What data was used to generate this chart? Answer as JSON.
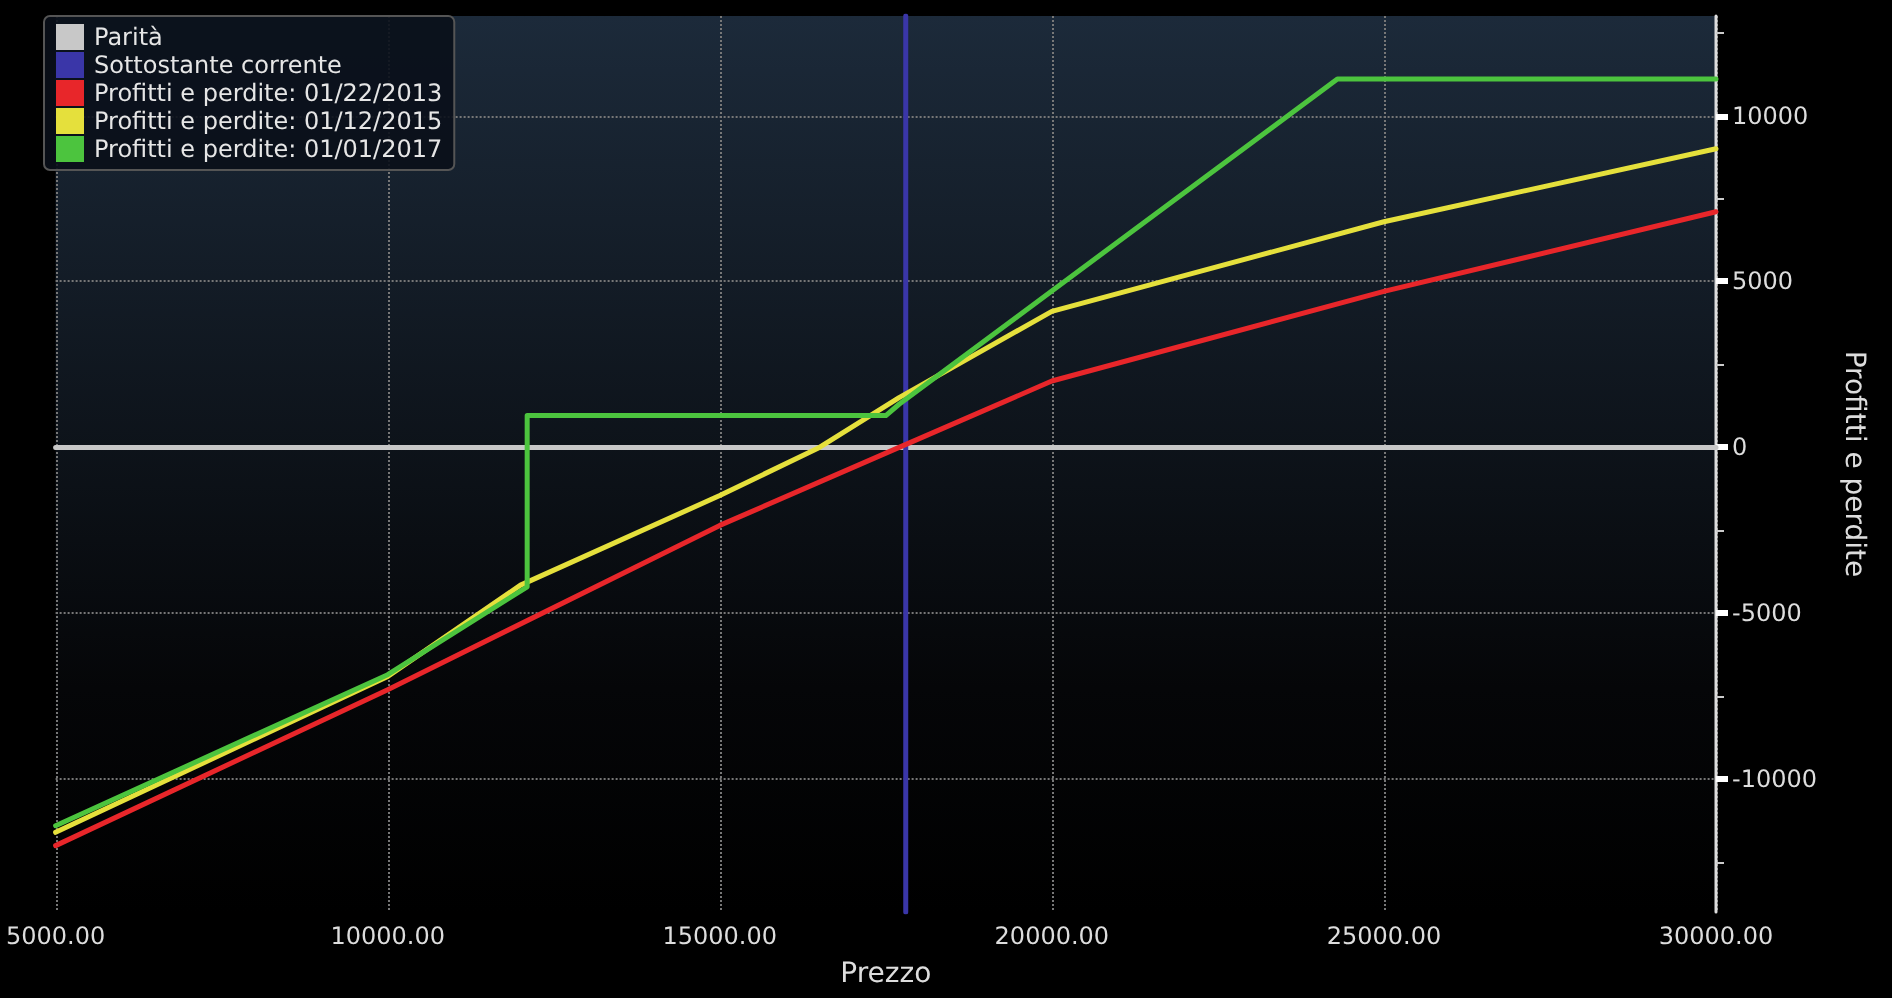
{
  "chart_data": {
    "type": "line",
    "xlabel": "Prezzo",
    "ylabel": "Profitti e perdite",
    "xlim": [
      5000,
      30000
    ],
    "ylim": [
      -14000,
      13000
    ],
    "xticks": [
      {
        "value": 5000,
        "label": "5000.00"
      },
      {
        "value": 10000,
        "label": "10000.00"
      },
      {
        "value": 15000,
        "label": "15000.00"
      },
      {
        "value": 20000,
        "label": "20000.00"
      },
      {
        "value": 25000,
        "label": "25000.00"
      },
      {
        "value": 30000,
        "label": "30000.00"
      }
    ],
    "yticks": [
      -10000,
      -5000,
      0,
      5000,
      10000
    ],
    "grid": true,
    "legend": "top left",
    "line_style": "solid",
    "marker": "none",
    "series": [
      {
        "name": "Parità",
        "color": "#c8c8c8",
        "x": [
          5000,
          30000
        ],
        "values": [
          0,
          0
        ]
      },
      {
        "name": "Sottostante corrente",
        "color": "#3a36a8",
        "x": [
          17800,
          17800
        ],
        "values": [
          -14000,
          13000
        ]
      },
      {
        "name": "Profitti e perdite: 01/22/2013",
        "color": "#e8262a",
        "x": [
          5000,
          10000,
          15000,
          17700,
          20000,
          25000,
          30000
        ],
        "values": [
          -12000,
          -7300,
          -2350,
          0,
          2000,
          4700,
          7100
        ]
      },
      {
        "name": "Profitti e perdite: 01/12/2015",
        "color": "#e5e03c",
        "x": [
          5000,
          10000,
          12000,
          15000,
          16500,
          17700,
          20000,
          25000,
          30000
        ],
        "values": [
          -11600,
          -6900,
          -4150,
          -1450,
          0,
          1500,
          4100,
          6800,
          9000
        ]
      },
      {
        "name": "Profitti e perdite: 01/01/2017",
        "color": "#4cc43e",
        "x": [
          5000,
          10000,
          12100,
          12100,
          17500,
          17700,
          24300,
          30000
        ],
        "values": [
          -11400,
          -6850,
          -4200,
          960,
          960,
          1300,
          11100,
          11100
        ]
      }
    ]
  }
}
